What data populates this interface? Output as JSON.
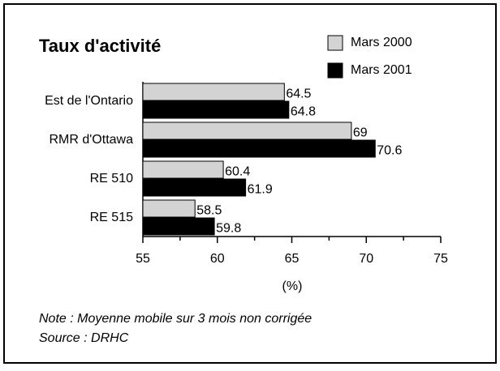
{
  "chart_data": {
    "type": "bar",
    "orientation": "horizontal",
    "title": "Taux d'activité",
    "categories": [
      "Est de l'Ontario",
      "RMR d'Ottawa",
      "RE 510",
      "RE 515"
    ],
    "series": [
      {
        "name": "Mars 2000",
        "color": "#d3d3d3",
        "values": [
          64.5,
          69,
          60.4,
          58.5
        ]
      },
      {
        "name": "Mars 2001",
        "color": "#000000",
        "values": [
          64.8,
          70.6,
          61.9,
          59.8
        ]
      }
    ],
    "xlim": [
      55,
      75
    ],
    "xticks": [
      55,
      60,
      65,
      70,
      75
    ],
    "minor_xticks": [
      57.5,
      62.5,
      67.5,
      72.5
    ],
    "xlabel": "(%)",
    "notes": [
      "Note : Moyenne mobile sur 3 mois non corrigée",
      "Source : DRHC"
    ]
  }
}
